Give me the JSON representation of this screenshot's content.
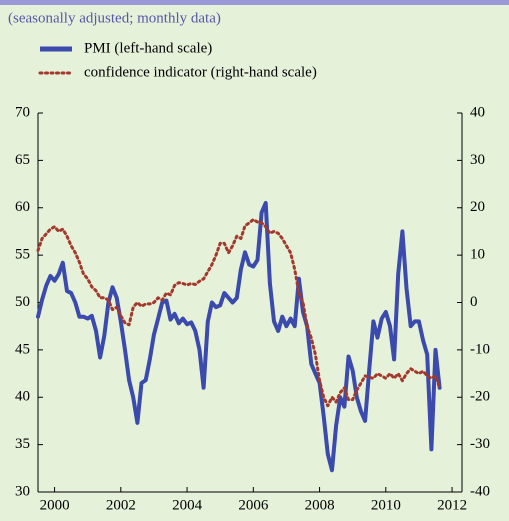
{
  "chart_data": {
    "type": "line",
    "subtitle": "(seasonally adjusted; monthly data)",
    "xlim": [
      1999.5,
      2012.3
    ],
    "xticks": [
      2000,
      2002,
      2004,
      2006,
      2008,
      2010,
      2012
    ],
    "ylim": [
      30,
      70
    ],
    "yticks": [
      30,
      35,
      40,
      45,
      50,
      55,
      60,
      65,
      70
    ],
    "y2lim": [
      -40,
      40
    ],
    "y2ticks": [
      -40,
      -30,
      -20,
      -10,
      0,
      10,
      20,
      30,
      40
    ],
    "x": [
      1999.5,
      1999.625,
      1999.75,
      1999.875,
      2000,
      2000.125,
      2000.25,
      2000.375,
      2000.5,
      2000.625,
      2000.75,
      2000.875,
      2001,
      2001.125,
      2001.25,
      2001.375,
      2001.5,
      2001.625,
      2001.75,
      2001.875,
      2002,
      2002.125,
      2002.25,
      2002.375,
      2002.5,
      2002.625,
      2002.75,
      2002.875,
      2003,
      2003.125,
      2003.25,
      2003.375,
      2003.5,
      2003.625,
      2003.75,
      2003.875,
      2004,
      2004.125,
      2004.25,
      2004.375,
      2004.5,
      2004.625,
      2004.75,
      2004.875,
      2005,
      2005.125,
      2005.25,
      2005.375,
      2005.5,
      2005.625,
      2005.75,
      2005.875,
      2006,
      2006.125,
      2006.25,
      2006.375,
      2006.5,
      2006.625,
      2006.75,
      2006.875,
      2007,
      2007.125,
      2007.25,
      2007.375,
      2007.5,
      2007.625,
      2007.75,
      2007.875,
      2008,
      2008.125,
      2008.25,
      2008.375,
      2008.5,
      2008.625,
      2008.75,
      2008.875,
      2009,
      2009.125,
      2009.25,
      2009.375,
      2009.5,
      2009.625,
      2009.75,
      2009.875,
      2010,
      2010.125,
      2010.25,
      2010.375,
      2010.5,
      2010.625,
      2010.75,
      2010.875,
      2011,
      2011.125,
      2011.25,
      2011.375,
      2011.5,
      2011.625
    ],
    "series": [
      {
        "name": "PMI (left-hand scale)",
        "color": "#3b4aad",
        "dash": "solid",
        "values": [
          48.5,
          50.3,
          51.8,
          52.8,
          52.3,
          53,
          54.2,
          51.2,
          51,
          50,
          48.5,
          48.5,
          48.3,
          48.6,
          47,
          44.2,
          46.5,
          50,
          51.6,
          50.5,
          48,
          45,
          41.8,
          40,
          37.3,
          41.5,
          41.8,
          44,
          46.6,
          48.3,
          50,
          50.2,
          48.2,
          48.8,
          47.8,
          48.3,
          47.7,
          47.9,
          47,
          45,
          41,
          48,
          50,
          49.5,
          49.7,
          51,
          50.5,
          50,
          50.5,
          53.5,
          55.3,
          54,
          53.8,
          54.5,
          59.5,
          60.5,
          52,
          48,
          47,
          48.5,
          47.5,
          48.3,
          47.5,
          52.5,
          49,
          47.5,
          43.5,
          42.5,
          41.5,
          38,
          34,
          32.3,
          37,
          40,
          39,
          44.3,
          42.8,
          40,
          38.5,
          37.5,
          43,
          48,
          46.3,
          48.3,
          49,
          47.5,
          44,
          53,
          57.5,
          51.5,
          47.5,
          48,
          48,
          46,
          44.5,
          34.5,
          45,
          41
        ]
      },
      {
        "name": "confidence indicator (right-hand scale)",
        "color": "#a3392c",
        "dash": "dotted",
        "axis": "y2",
        "values": [
          11,
          13.5,
          14.5,
          15.5,
          16,
          15,
          15.5,
          14,
          12,
          10.5,
          8.5,
          6,
          5,
          3.3,
          2.5,
          1,
          1,
          0.5,
          -1.5,
          -1,
          -2.8,
          -4.3,
          -4.7,
          -1,
          0,
          -0.8,
          -0.3,
          -0.3,
          0,
          1,
          0.5,
          2,
          1.6,
          3.6,
          4.2,
          4,
          3.7,
          4,
          3.8,
          4.5,
          5,
          6.5,
          8,
          10,
          12.5,
          12.5,
          10.5,
          12,
          14,
          13.5,
          16.2,
          16.8,
          17.5,
          17,
          16.8,
          16,
          14.6,
          15,
          14.6,
          13.5,
          12,
          10.5,
          7,
          2,
          0,
          -5,
          -7.5,
          -11,
          -16.5,
          -20,
          -21.8,
          -20,
          -21,
          -19,
          -18,
          -20.5,
          -20.5,
          -18.5,
          -17,
          -15.5,
          -15.8,
          -16,
          -15,
          -15.5,
          -16,
          -15,
          -16,
          -15,
          -16.5,
          -15,
          -14,
          -14.5,
          -15,
          -14.5,
          -15.5,
          -16,
          -15.5,
          -18
        ]
      }
    ]
  }
}
